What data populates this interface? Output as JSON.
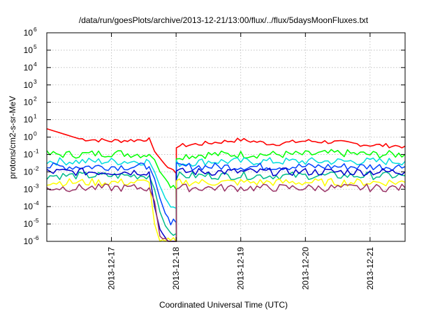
{
  "chart_data": {
    "type": "line",
    "title": "/data/run/goesPlots/archive/2013-12-21/13:00/flux/../flux/5daysMoonFluxes.txt",
    "xlabel": "Coordinated Universal Time (UTC)",
    "ylabel": "protons/cm2-s-sr-MeV",
    "yscale": "log",
    "ylim": [
      1e-06,
      1000000.0
    ],
    "xlim": [
      "2013-12-16 00:00",
      "2013-12-21 13:00"
    ],
    "x_ticks": [
      "2013-12-17",
      "2013-12-18",
      "2013-12-19",
      "2013-12-20",
      "2013-12-21"
    ],
    "y_ticks": [
      "1e-6",
      "1e-5",
      "1e-4",
      "1e-3",
      "1e-2",
      "1e-1",
      "1e0",
      "1e1",
      "1e2",
      "1e3",
      "1e4",
      "1e5",
      "1e6"
    ],
    "grid": true,
    "x": [
      "2013-12-16 00:00",
      "2013-12-16 12:00",
      "2013-12-17 00:00",
      "2013-12-17 12:00",
      "2013-12-17 14:00",
      "2013-12-17 16:00",
      "2013-12-17 18:00",
      "2013-12-17 20:00",
      "2013-12-17 22:00",
      "2013-12-17 23:59",
      "2013-12-18 00:05",
      "2013-12-18 12:00",
      "2013-12-19 00:00",
      "2013-12-19 12:00",
      "2013-12-20 00:00",
      "2013-12-20 12:00",
      "2013-12-21 00:00",
      "2013-12-21 13:00"
    ],
    "series": [
      {
        "color": "#ff0000",
        "values": [
          3.0,
          0.8,
          0.6,
          0.7,
          0.9,
          0.15,
          0.06,
          0.025,
          0.012,
          0.008,
          0.3,
          0.45,
          0.7,
          0.4,
          0.6,
          0.5,
          0.35,
          0.3
        ]
      },
      {
        "color": "#00ff00",
        "values": [
          0.1,
          0.1,
          0.12,
          0.1,
          0.1,
          0.05,
          0.01,
          0.004,
          0.0015,
          0.001,
          0.08,
          0.1,
          0.1,
          0.1,
          0.1,
          0.12,
          0.1,
          0.1
        ]
      },
      {
        "color": "#00dddd",
        "values": [
          0.04,
          0.04,
          0.04,
          0.04,
          0.04,
          0.01,
          0.0015,
          0.0003,
          0.0001,
          8e-05,
          0.03,
          0.04,
          0.04,
          0.04,
          0.04,
          0.04,
          0.04,
          0.04
        ]
      },
      {
        "color": "#0044ff",
        "values": [
          0.02,
          0.02,
          0.02,
          0.02,
          0.02,
          0.004,
          0.0003,
          4e-05,
          1.5e-05,
          1.2e-05,
          0.02,
          0.02,
          0.02,
          0.02,
          0.02,
          0.02,
          0.02,
          0.02
        ]
      },
      {
        "color": "#00bb88",
        "values": [
          0.006,
          0.006,
          0.006,
          0.006,
          0.006,
          0.001,
          5e-05,
          8e-06,
          3e-06,
          2.8e-06,
          0.006,
          0.006,
          0.006,
          0.006,
          0.006,
          0.006,
          0.006,
          0.006
        ]
      },
      {
        "color": "#0000cc",
        "values": [
          0.01,
          0.01,
          0.01,
          0.01,
          0.01,
          0.0001,
          5e-06,
          1.5e-06,
          1e-06,
          1e-06,
          0.01,
          0.01,
          0.01,
          0.01,
          0.01,
          0.01,
          0.01,
          0.01
        ]
      },
      {
        "color": "#ffff00",
        "values": [
          0.0025,
          0.0025,
          0.0025,
          0.0025,
          0.0025,
          1e-05,
          1e-06,
          1e-06,
          1e-06,
          1e-06,
          0.0025,
          0.0025,
          0.0025,
          0.0025,
          0.0025,
          0.0025,
          0.0025,
          0.0025
        ]
      },
      {
        "color": "#993366",
        "values": [
          0.0012,
          0.0012,
          0.0012,
          0.0012,
          0.0012,
          0.0002,
          2e-06,
          1e-06,
          1e-06,
          1e-06,
          0.0012,
          0.0012,
          0.0012,
          0.0012,
          0.0012,
          0.0012,
          0.0012,
          0.0012
        ]
      }
    ]
  }
}
